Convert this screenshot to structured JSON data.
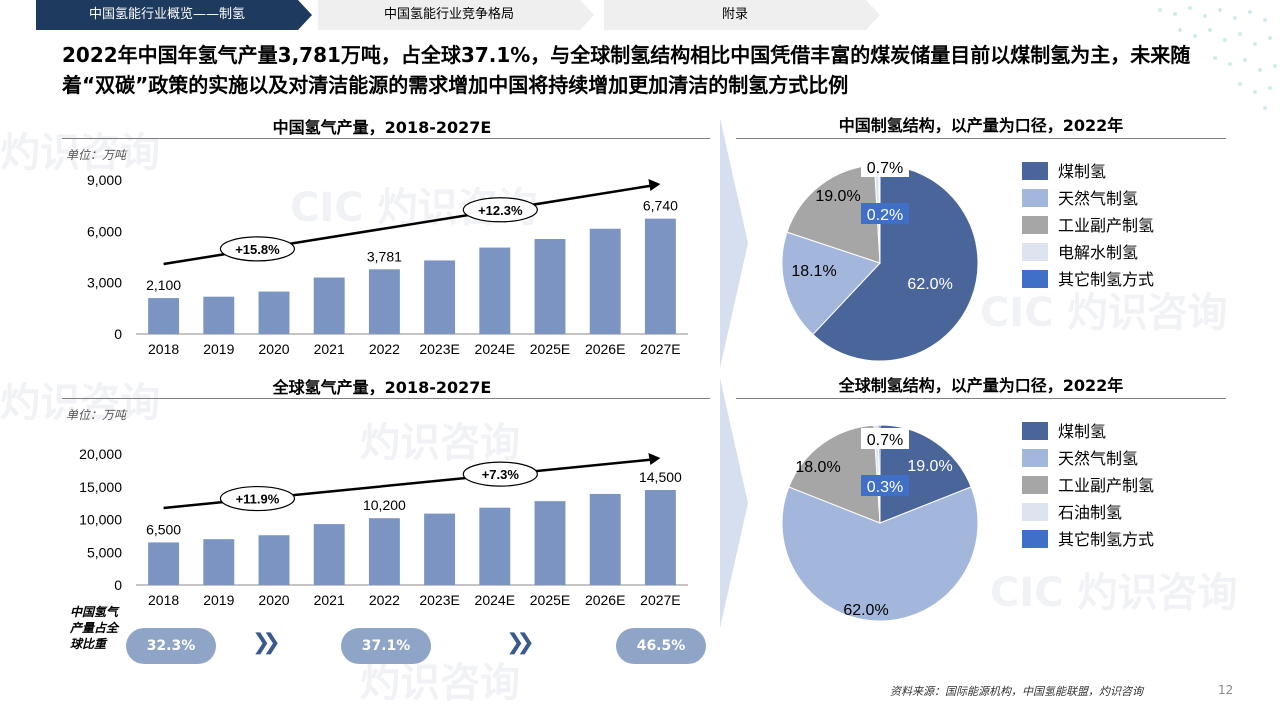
{
  "tabs": [
    {
      "label": "中国氢能行业概览——制氢"
    },
    {
      "label": "中国氢能行业竞争格局"
    },
    {
      "label": "附录"
    }
  ],
  "headline": "2022年中国年氢气产量3,781万吨，占全球37.1%，与全球制氢结构相比中国凭借丰富的煤炭储量目前以煤制氢为主，未来随着“双碳”政策的实施以及对清洁能源的需求增加中国将持续增加更加清洁的制氢方式比例",
  "unit_label": "单位：万吨",
  "share": {
    "label": "中国氢气产量占全球比重",
    "values": [
      "32.3%",
      "37.1%",
      "46.5%"
    ]
  },
  "source": "资料来源：国际能源机构，中国氢能联盟，灼识咨询",
  "page_number": "12",
  "colors": {
    "bar": "#7b94c2",
    "dark_blue": "#1f3a5f",
    "coal": "#4a6599",
    "gas": "#a3b6dc",
    "industry": "#a6a6a6",
    "electrolysis": "#dde4f0",
    "other": "#3f6fc6"
  },
  "chart_data": [
    {
      "type": "bar",
      "title": "中国氢气产量，2018-2027E",
      "categories": [
        "2018",
        "2019",
        "2020",
        "2021",
        "2022",
        "2023E",
        "2024E",
        "2025E",
        "2026E",
        "2027E"
      ],
      "values": [
        2100,
        2180,
        2480,
        3300,
        3781,
        4300,
        5050,
        5550,
        6150,
        6740
      ],
      "data_labels": {
        "0": "2,100",
        "4": "3,781",
        "9": "6,740"
      },
      "yticks": [
        "0",
        "3,000",
        "6,000",
        "9,000"
      ],
      "ylim": [
        0,
        9000
      ],
      "cagr": [
        "+15.8%",
        "+12.3%"
      ]
    },
    {
      "type": "pie",
      "title": "中国制氢结构，以产量为口径，2022年",
      "slices": [
        {
          "name": "煤制氢",
          "value": 62.0,
          "label": "62.0%"
        },
        {
          "name": "天然气制氢",
          "value": 18.1,
          "label": "18.1%"
        },
        {
          "name": "工业副产制氢",
          "value": 19.0,
          "label": "19.0%"
        },
        {
          "name": "电解水制氢",
          "value": 0.7,
          "label": "0.7%"
        },
        {
          "name": "其它制氢方式",
          "value": 0.2,
          "label": "0.2%"
        }
      ]
    },
    {
      "type": "bar",
      "title": "全球氢气产量，2018-2027E",
      "categories": [
        "2018",
        "2019",
        "2020",
        "2021",
        "2022",
        "2023E",
        "2024E",
        "2025E",
        "2026E",
        "2027E"
      ],
      "values": [
        6500,
        7000,
        7600,
        9300,
        10200,
        10900,
        11800,
        12800,
        13900,
        14500
      ],
      "data_labels": {
        "0": "6,500",
        "4": "10,200",
        "9": "14,500"
      },
      "yticks": [
        "0",
        "5,000",
        "10,000",
        "15,000",
        "20,000"
      ],
      "ylim": [
        0,
        20000
      ],
      "cagr": [
        "+11.9%",
        "+7.3%"
      ]
    },
    {
      "type": "pie",
      "title": "全球制氢结构，以产量为口径，2022年",
      "slices": [
        {
          "name": "煤制氢",
          "value": 19.0,
          "label": "19.0%"
        },
        {
          "name": "天然气制氢",
          "value": 62.0,
          "label": "62.0%"
        },
        {
          "name": "工业副产制氢",
          "value": 18.0,
          "label": "18.0%"
        },
        {
          "name": "石油制氢",
          "value": 0.7,
          "label": "0.7%"
        },
        {
          "name": "其它制氢方式",
          "value": 0.3,
          "label": "0.3%"
        }
      ]
    }
  ]
}
